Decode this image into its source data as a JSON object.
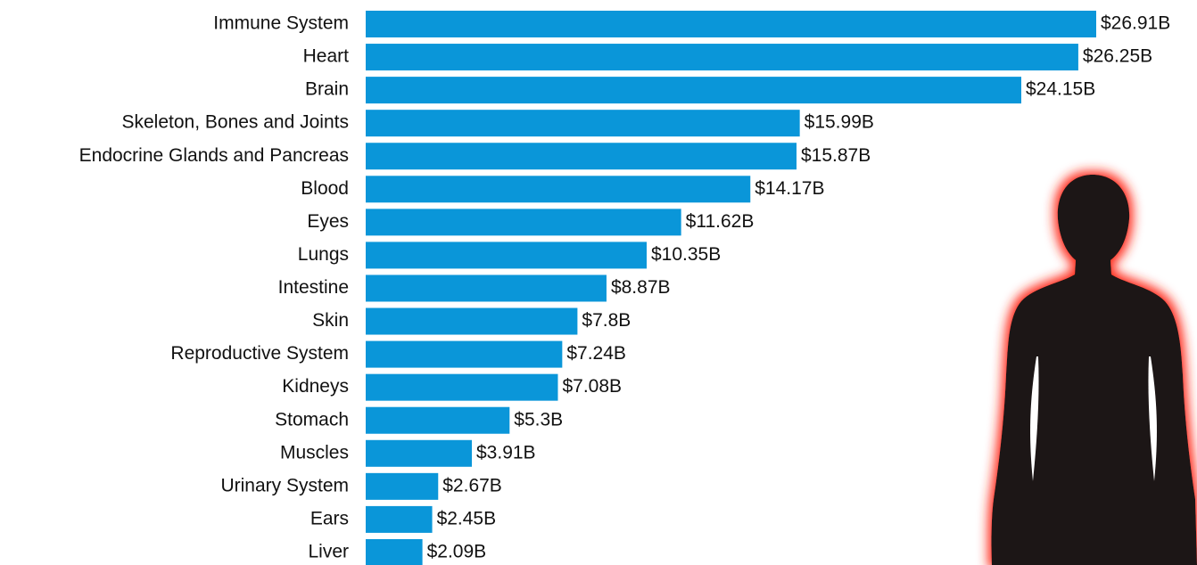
{
  "chart_data": {
    "type": "bar",
    "orientation": "horizontal",
    "color": "#0a96d9",
    "categories": [
      "Immune System",
      "Heart",
      "Brain",
      "Skeleton, Bones and Joints",
      "Endocrine Glands and Pancreas",
      "Blood",
      "Eyes",
      "Lungs",
      "Intestine",
      "Skin",
      "Reproductive System",
      "Kidneys",
      "Stomach",
      "Muscles",
      "Urinary System",
      "Ears",
      "Liver"
    ],
    "values": [
      26.91,
      26.25,
      24.15,
      15.99,
      15.87,
      14.17,
      11.62,
      10.35,
      8.87,
      7.8,
      7.24,
      7.08,
      5.3,
      3.91,
      2.67,
      2.45,
      2.09
    ],
    "value_labels": [
      "$26.91B",
      "$26.25B",
      "$24.15B",
      "$15.99B",
      "$15.87B",
      "$14.17B",
      "$11.62B",
      "$10.35B",
      "$8.87B",
      "$7.8B",
      "$7.24B",
      "$7.08B",
      "$5.3B",
      "$3.91B",
      "$2.67B",
      "$2.45B",
      "$2.09B"
    ]
  }
}
